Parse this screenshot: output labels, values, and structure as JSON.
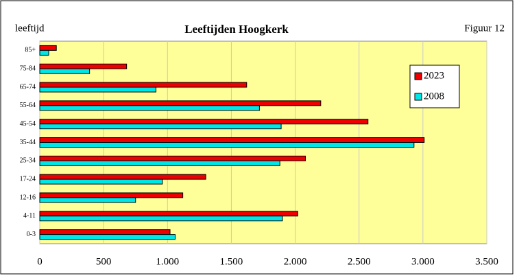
{
  "chart_data": {
    "type": "bar",
    "orientation": "horizontal",
    "title": "Leeftijden Hoogkerk",
    "y_label": "leeftijd",
    "annotation": "Figuur 12",
    "categories": [
      "0-3",
      "4-11",
      "12-16",
      "17-24",
      "25-34",
      "35-44",
      "45-54",
      "55-64",
      "65-74",
      "75-84",
      "85+"
    ],
    "series": [
      {
        "name": "2023",
        "color": "#ee0000",
        "values": [
          1020,
          2020,
          1120,
          1300,
          2080,
          3010,
          2570,
          2200,
          1620,
          680,
          130
        ]
      },
      {
        "name": "2008",
        "color": "#00e5e5",
        "values": [
          1060,
          1900,
          750,
          960,
          1880,
          2930,
          1890,
          1720,
          910,
          390,
          70
        ]
      }
    ],
    "xlim": [
      0,
      3500
    ],
    "xticks": [
      0,
      500,
      {
        "value": 1000,
        "label": "1.000"
      },
      {
        "value": 1500,
        "label": "1.500"
      },
      {
        "value": 2000,
        "label": "2.000"
      },
      {
        "value": 2500,
        "label": "2.500"
      },
      {
        "value": 3000,
        "label": "3.000"
      },
      {
        "value": 3500,
        "label": "3.500"
      }
    ],
    "grid": true,
    "legend": "right",
    "plot_color": "#ffff99"
  }
}
